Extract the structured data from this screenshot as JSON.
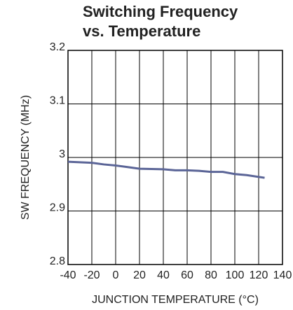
{
  "chart_data": {
    "type": "line",
    "title": [
      "Switching Frequency",
      "vs. Temperature"
    ],
    "x_label": "JUNCTION TEMPERATURE (°C)",
    "y_label": "SW FREQUENCY (MHz)",
    "x": [
      -40,
      -20,
      -10,
      0,
      10,
      20,
      40,
      50,
      60,
      70,
      80,
      90,
      100,
      110,
      125
    ],
    "series": [
      {
        "name": "SW frequency",
        "color": "#5b6597",
        "values": [
          2.992,
          2.99,
          2.987,
          2.985,
          2.982,
          2.979,
          2.978,
          2.976,
          2.976,
          2.975,
          2.973,
          2.973,
          2.969,
          2.967,
          2.962
        ]
      }
    ],
    "xlim": [
      -40,
      140
    ],
    "xticks": [
      -40,
      -20,
      0,
      20,
      40,
      60,
      80,
      100,
      120,
      140
    ],
    "ylim": [
      2.8,
      3.2
    ],
    "yticks": [
      2.8,
      2.9,
      3,
      3.1,
      3.2
    ],
    "grid": true
  }
}
